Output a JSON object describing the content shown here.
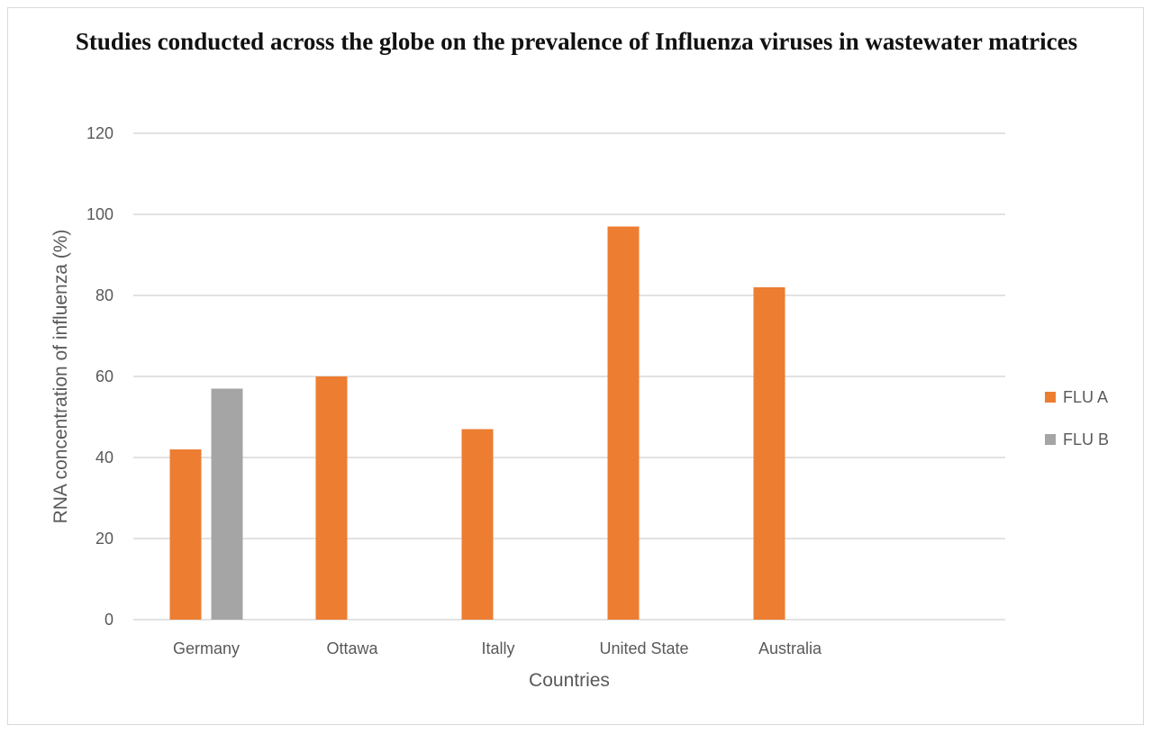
{
  "chart_data": {
    "type": "bar",
    "title": "Studies conducted  across the globe on the prevalence of Influenza viruses in wastewater matrices",
    "xlabel": "Countries",
    "ylabel": "RNA concentration of influenza (%)",
    "categories": [
      "Germany",
      "Ottawa",
      "Itally",
      "United State",
      "Australia"
    ],
    "series": [
      {
        "name": "FLU A",
        "color": "#ED7D31",
        "values": [
          42,
          60,
          47,
          97,
          82
        ]
      },
      {
        "name": "FLU B",
        "color": "#A5A5A5",
        "values": [
          57,
          null,
          null,
          null,
          null
        ]
      }
    ],
    "ylim": [
      0,
      120
    ],
    "yticks": [
      0,
      20,
      40,
      60,
      80,
      100,
      120
    ],
    "grid": true,
    "legend": "right"
  }
}
